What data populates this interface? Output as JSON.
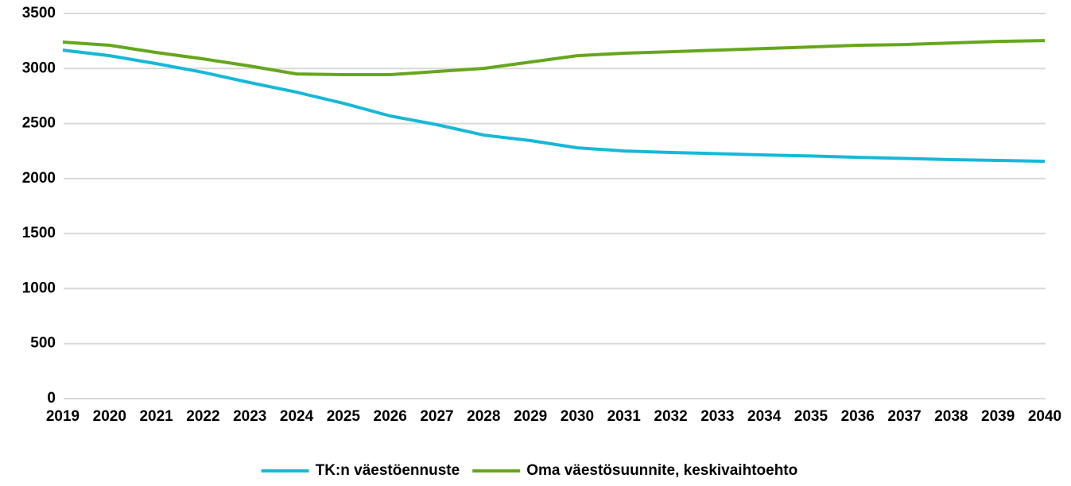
{
  "chart_data": {
    "type": "line",
    "categories": [
      "2019",
      "2020",
      "2021",
      "2022",
      "2023",
      "2024",
      "2025",
      "2026",
      "2027",
      "2028",
      "2029",
      "2030",
      "2031",
      "2032",
      "2033",
      "2034",
      "2035",
      "2036",
      "2037",
      "2038",
      "2039",
      "2040"
    ],
    "series": [
      {
        "name": "TK:n väestöennuste",
        "color": "#17b8d8",
        "values": [
          3167,
          3117,
          3045,
          2965,
          2872,
          2785,
          2684,
          2569,
          2490,
          2395,
          2345,
          2280,
          2251,
          2237,
          2226,
          2215,
          2205,
          2193,
          2183,
          2172,
          2165,
          2157
        ]
      },
      {
        "name": "Oma väestösuunnite, keskivaihtoehto",
        "color": "#66a61e",
        "values": [
          3240,
          3211,
          3146,
          3088,
          3023,
          2951,
          2944,
          2944,
          2973,
          3001,
          3059,
          3117,
          3139,
          3153,
          3167,
          3182,
          3196,
          3211,
          3218,
          3232,
          3247,
          3254
        ]
      }
    ],
    "ylim": [
      0,
      3500
    ],
    "yticks": [
      0,
      500,
      1000,
      1500,
      2000,
      2500,
      3000,
      3500
    ],
    "grid": true,
    "legend": "bottom"
  }
}
